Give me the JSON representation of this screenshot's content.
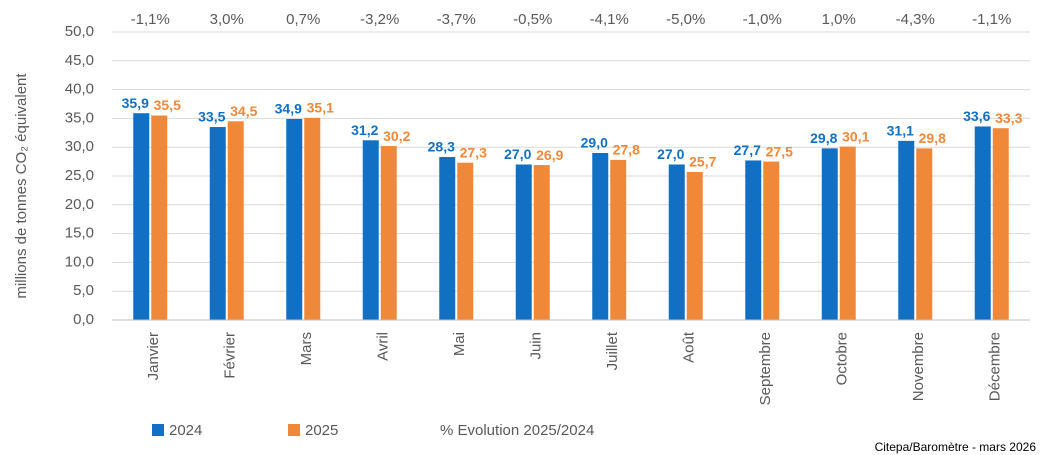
{
  "chart_data": {
    "type": "bar",
    "y_label": "millions de tonnes CO₂ équivalent",
    "source": "Citepa/Baromètre - mars 2026",
    "categories": [
      "Janvier",
      "Février",
      "Mars",
      "Avril",
      "Mai",
      "Juin",
      "Juillet",
      "Août",
      "Septembre",
      "Octobre",
      "Novembre",
      "Décembre"
    ],
    "series": [
      {
        "name": "2024",
        "color": "#1170c4",
        "values": [
          35.9,
          33.5,
          34.9,
          31.2,
          28.3,
          27.0,
          29.0,
          27.0,
          27.7,
          29.8,
          31.1,
          33.6
        ],
        "value_labels": [
          "35,9",
          "33,5",
          "34,9",
          "31,2",
          "28,3",
          "27,0",
          "29,0",
          "27,0",
          "27,7",
          "29,8",
          "31,1",
          "33,6"
        ]
      },
      {
        "name": "2025",
        "color": "#f0883a",
        "values": [
          35.5,
          34.5,
          35.1,
          30.2,
          27.3,
          26.9,
          27.8,
          25.7,
          27.5,
          30.1,
          29.8,
          33.3
        ],
        "value_labels": [
          "35,5",
          "34,5",
          "35,1",
          "30,2",
          "27,3",
          "26,9",
          "27,8",
          "25,7",
          "27,5",
          "30,1",
          "29,8",
          "33,3"
        ]
      }
    ],
    "evolution": {
      "name": "% Evolution 2025/2024",
      "values": [
        -1.1,
        3.0,
        0.7,
        -3.2,
        -3.7,
        -0.5,
        -4.1,
        -5.0,
        -1.0,
        1.0,
        -4.3,
        -1.1
      ],
      "value_labels": [
        "-1,1%",
        "3,0%",
        "0,7%",
        "-3,2%",
        "-3,7%",
        "-0,5%",
        "-4,1%",
        "-5,0%",
        "-1,0%",
        "1,0%",
        "-4,3%",
        "-1,1%"
      ]
    },
    "ylim": [
      0,
      50
    ],
    "yticks": [
      {
        "value": 0,
        "label": "0,0"
      },
      {
        "value": 5,
        "label": "5,0"
      },
      {
        "value": 10,
        "label": "10,0"
      },
      {
        "value": 15,
        "label": "15,0"
      },
      {
        "value": 20,
        "label": "20,0"
      },
      {
        "value": 25,
        "label": "25,0"
      },
      {
        "value": 30,
        "label": "30,0"
      },
      {
        "value": 35,
        "label": "35,0"
      },
      {
        "value": 40,
        "label": "40,0"
      },
      {
        "value": 45,
        "label": "45,0"
      },
      {
        "value": 50,
        "label": "50,0"
      }
    ],
    "grid": true
  }
}
